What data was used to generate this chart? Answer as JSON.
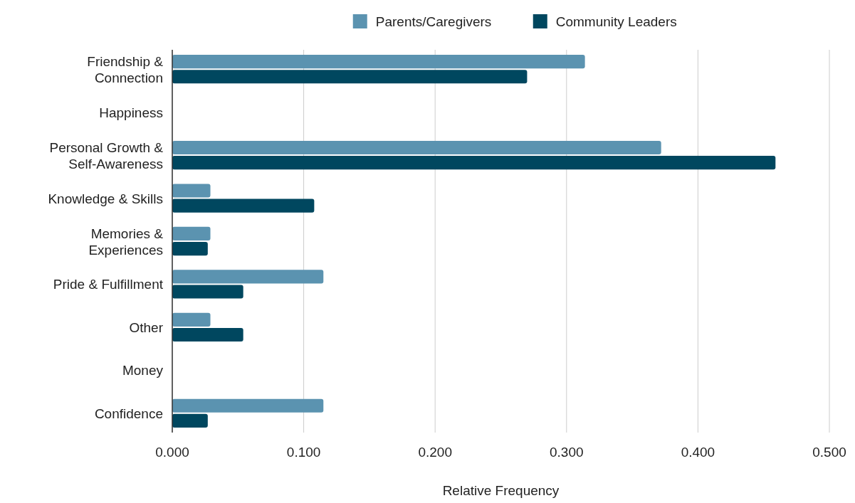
{
  "chart_data": {
    "type": "bar",
    "orientation": "horizontal",
    "xlabel": "Relative Frequency",
    "categories": [
      "Friendship & Connection",
      "Happiness",
      "Personal Growth & Self-Awareness",
      "Knowledge & Skills",
      "Memories & Experiences",
      "Pride & Fulfillment",
      "Other",
      "Money",
      "Confidence"
    ],
    "series": [
      {
        "name": "Parents/Caregivers",
        "color": "#5b93b0",
        "values": [
          0.314,
          0,
          0.372,
          0.029,
          0.029,
          0.115,
          0.029,
          0,
          0.115
        ]
      },
      {
        "name": "Community Leaders",
        "color": "#00475f",
        "values": [
          0.27,
          0,
          0.459,
          0.108,
          0.027,
          0.054,
          0.054,
          0,
          0.027
        ]
      }
    ],
    "xlim": [
      0,
      0.5
    ],
    "xticks": [
      {
        "value": 0,
        "label": "0.000"
      },
      {
        "value": 0.1,
        "label": "0.100"
      },
      {
        "value": 0.2,
        "label": "0.200"
      },
      {
        "value": 0.3,
        "label": "0.300"
      },
      {
        "value": 0.4,
        "label": "0.400"
      },
      {
        "value": 0.5,
        "label": "0.500"
      }
    ],
    "grid": "x",
    "legend": "top"
  }
}
